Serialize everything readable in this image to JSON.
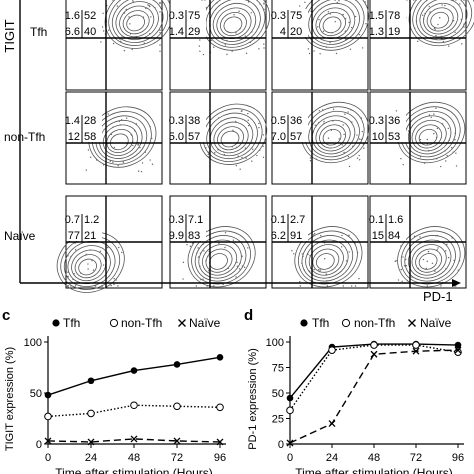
{
  "flow_panel": {
    "y_axis_label": "TIGIT",
    "x_axis_label": "PD-1",
    "rows": [
      {
        "label": "Tfh",
        "quadrants": [
          {
            "tl": "1.6",
            "tr": "52",
            "bl": "6.6",
            "br": "40"
          },
          {
            "tl": "0.3",
            "tr": "75",
            "bl": "1.4",
            "br": "29"
          },
          {
            "tl": "0.3",
            "tr": "75",
            "bl": "4",
            "br": "20"
          },
          {
            "tl": "1.5",
            "tr": "78",
            "bl": "1.3",
            "br": "19"
          }
        ]
      },
      {
        "label": "non-Tfh",
        "quadrants": [
          {
            "tl": "1.4",
            "tr": "28",
            "bl": "12",
            "br": "58"
          },
          {
            "tl": "0.3",
            "tr": "38",
            "bl": "5.0",
            "br": "57"
          },
          {
            "tl": "0.5",
            "tr": "36",
            "bl": "7.0",
            "br": "57"
          },
          {
            "tl": "0.3",
            "tr": "36",
            "bl": "10",
            "br": "53"
          }
        ]
      },
      {
        "label": "Naïve",
        "quadrants": [
          {
            "tl": "0.7",
            "tr": "1.2",
            "bl": "77",
            "br": "21"
          },
          {
            "tl": "0.3",
            "tr": "7.1",
            "bl": "9.9",
            "br": "83"
          },
          {
            "tl": "0.1",
            "tr": "2.7",
            "bl": "6.2",
            "br": "91"
          },
          {
            "tl": "0.1",
            "tr": "1.6",
            "bl": "15",
            "br": "84"
          }
        ]
      }
    ]
  },
  "chart_data": [
    {
      "panel_letter": "c",
      "type": "line",
      "ylabel": "TIGIT expression (%)",
      "xlabel": "Time after stimulation (Hours)",
      "x": [
        0,
        24,
        48,
        72,
        96
      ],
      "xticks": [
        "0",
        "24",
        "48",
        "72",
        "96"
      ],
      "yticks": [
        "0",
        "50",
        "100"
      ],
      "ylim": [
        0,
        100
      ],
      "legend_position": "top",
      "series": [
        {
          "name": "Tfh",
          "values": [
            48,
            62,
            72,
            78,
            85
          ],
          "marker": "filled-circle",
          "line": "solid"
        },
        {
          "name": "non-Tfh",
          "values": [
            27,
            30,
            38,
            37,
            36
          ],
          "marker": "open-circle",
          "line": "dotted"
        },
        {
          "name": "Naïve",
          "values": [
            3,
            2,
            5,
            3,
            2
          ],
          "marker": "cross",
          "line": "dashed"
        }
      ]
    },
    {
      "panel_letter": "d",
      "type": "line",
      "ylabel": "PD-1 expression (%)",
      "xlabel": "Time after stimulation (Hours)",
      "x": [
        0,
        24,
        48,
        72,
        96
      ],
      "xticks": [
        "0",
        "24",
        "48",
        "72",
        "96"
      ],
      "yticks": [
        "0",
        "25",
        "50",
        "75",
        "100"
      ],
      "ylim": [
        0,
        100
      ],
      "legend_position": "top",
      "series": [
        {
          "name": "Tfh",
          "values": [
            45,
            95,
            98,
            98,
            97
          ],
          "marker": "filled-circle",
          "line": "solid"
        },
        {
          "name": "non-Tfh",
          "values": [
            33,
            92,
            97,
            97,
            90
          ],
          "marker": "open-circle",
          "line": "dotted"
        },
        {
          "name": "Naïve",
          "values": [
            1,
            20,
            88,
            91,
            92
          ],
          "marker": "cross",
          "line": "dashed"
        }
      ]
    }
  ]
}
